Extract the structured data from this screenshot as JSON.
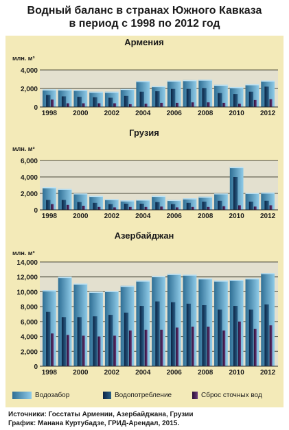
{
  "title_line1": "Водный баланс в странах Южного Кавказа",
  "title_line2": "в период с 1998 по 2012 год",
  "chart_data": [
    {
      "type": "bar",
      "title": "Армения",
      "ylabel": "млн. м³",
      "ylim": [
        0,
        4000
      ],
      "yticks": [
        0,
        2000,
        4000
      ],
      "categories": [
        "1998",
        "1999",
        "2000",
        "2001",
        "2002",
        "2003",
        "2004",
        "2005",
        "2006",
        "2007",
        "2008",
        "2009",
        "2010",
        "2011",
        "2012"
      ],
      "xtick_labels": [
        "1998",
        "2000",
        "2002",
        "2004",
        "2006",
        "2008",
        "2010",
        "2012"
      ],
      "series": [
        {
          "name": "Водозабор",
          "values": [
            1900,
            1900,
            1850,
            1650,
            1650,
            1950,
            2800,
            2250,
            2850,
            2900,
            2950,
            2400,
            2150,
            2450,
            2850
          ]
        },
        {
          "name": "Водопотребление",
          "values": [
            1300,
            1150,
            1100,
            1050,
            1000,
            1200,
            1650,
            1700,
            1950,
            1950,
            2050,
            1500,
            1400,
            1650,
            2200
          ]
        },
        {
          "name": "Сброс сточных вод",
          "values": [
            800,
            400,
            400,
            400,
            400,
            300,
            350,
            450,
            450,
            500,
            500,
            450,
            350,
            750,
            850
          ]
        }
      ]
    },
    {
      "type": "bar",
      "title": "Грузия",
      "ylabel": "млн. м³",
      "ylim": [
        0,
        6000
      ],
      "yticks": [
        0,
        2000,
        4000,
        6000
      ],
      "categories": [
        "1998",
        "1999",
        "2000",
        "2001",
        "2002",
        "2003",
        "2004",
        "2005",
        "2006",
        "2007",
        "2008",
        "2009",
        "2010",
        "2011",
        "2012"
      ],
      "xtick_labels": [
        "1998",
        "2000",
        "2002",
        "2004",
        "2006",
        "2008",
        "2010",
        "2012"
      ],
      "series": [
        {
          "name": "Водозабор",
          "values": [
            2750,
            2550,
            2000,
            1700,
            1300,
            1150,
            1250,
            1700,
            1200,
            1400,
            1600,
            2000,
            5200,
            2050,
            2100
          ]
        },
        {
          "name": "Водопотребление",
          "values": [
            1200,
            1200,
            950,
            850,
            700,
            750,
            750,
            950,
            700,
            850,
            1000,
            1100,
            4000,
            1000,
            1100
          ]
        },
        {
          "name": "Сброс сточных вод",
          "values": [
            700,
            600,
            500,
            350,
            300,
            350,
            350,
            400,
            300,
            350,
            350,
            450,
            550,
            400,
            550
          ]
        }
      ]
    },
    {
      "type": "bar",
      "title": "Азербайджан",
      "ylabel": "млн. м³",
      "ylim": [
        0,
        14000
      ],
      "yticks": [
        0,
        2000,
        4000,
        6000,
        8000,
        10000,
        12000,
        14000
      ],
      "categories": [
        "1998",
        "1999",
        "2000",
        "2001",
        "2002",
        "2003",
        "2004",
        "2005",
        "2006",
        "2007",
        "2008",
        "2009",
        "2010",
        "2011",
        "2012"
      ],
      "xtick_labels": [
        "1998",
        "2000",
        "2002",
        "2004",
        "2006",
        "2008",
        "2010",
        "2012"
      ],
      "series": [
        {
          "name": "Водозабор",
          "values": [
            10200,
            12000,
            11100,
            10000,
            10100,
            10800,
            11500,
            12100,
            12400,
            12300,
            11800,
            11500,
            11600,
            11800,
            12500
          ]
        },
        {
          "name": "Водопотребление",
          "values": [
            7300,
            6600,
            6600,
            6700,
            6900,
            7200,
            8100,
            8700,
            8600,
            8400,
            8200,
            7600,
            8100,
            7600,
            8300
          ]
        },
        {
          "name": "Сброс сточных вод",
          "values": [
            4400,
            4200,
            4100,
            4000,
            4100,
            4800,
            4900,
            4900,
            5200,
            5300,
            5300,
            4800,
            6000,
            5000,
            5500
          ]
        }
      ]
    }
  ],
  "colors": {
    "withdrawal_light": "#8fcbe8",
    "withdrawal_dark": "#2f6f95",
    "consumption_light": "#2a5f86",
    "consumption_dark": "#0b2445",
    "discharge_light": "#6a3a78",
    "discharge_dark": "#2a0d35",
    "plot_bg": "#e3e0cf",
    "panel_bg": "#f3eab8",
    "gridline": "#8a8770"
  },
  "legend": {
    "withdrawal": "Водозабор",
    "consumption": "Водопотребление",
    "discharge": "Сброс сточных вод"
  },
  "sources_line1": "Источники: Госстаты Армении, Азербайджана, Грузии",
  "sources_line2": "График: Манана Куртубадзе, ГРИД-Арендал, 2015."
}
